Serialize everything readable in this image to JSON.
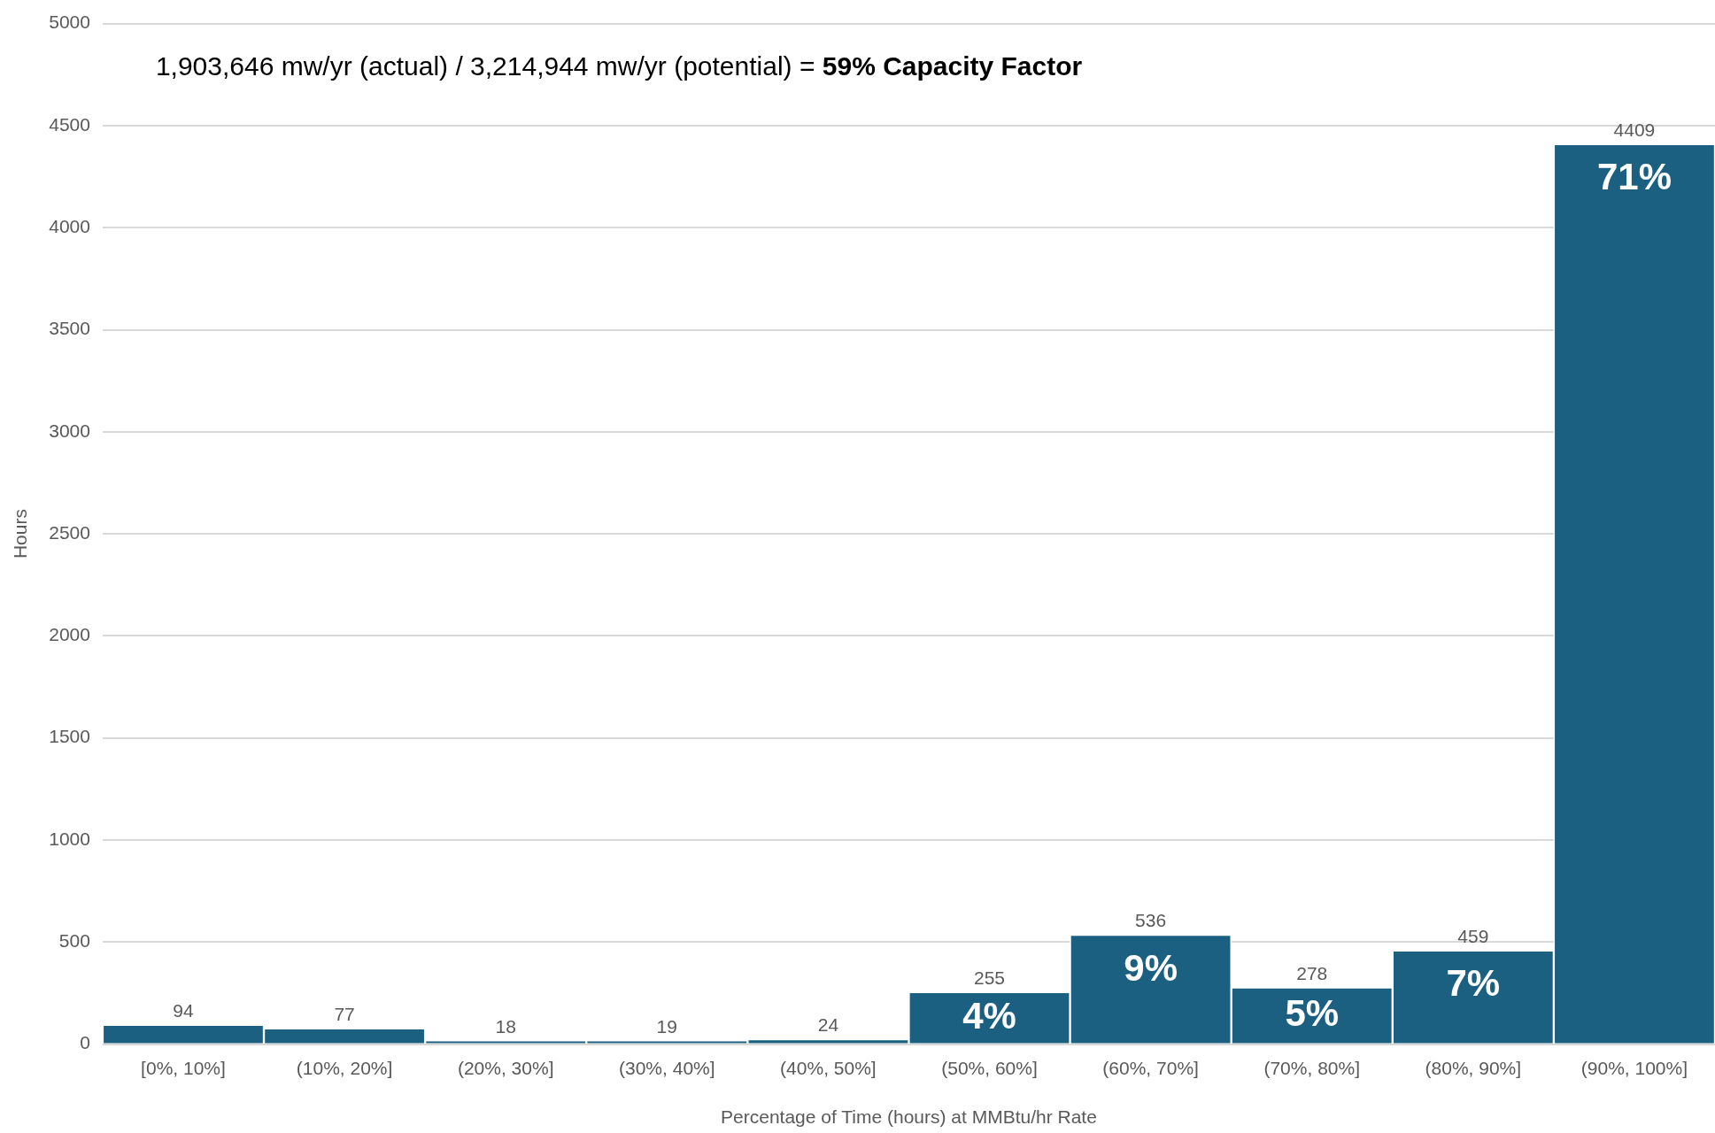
{
  "chart_data": {
    "type": "bar",
    "xlabel": "Percentage of Time (hours) at MMBtu/hr Rate",
    "ylabel": "Hours",
    "categories": [
      "[0%, 10%]",
      "(10%, 20%]",
      "(20%, 30%]",
      "(30%, 40%]",
      "(40%, 50%]",
      "(50%, 60%]",
      "(60%, 70%]",
      "(70%, 80%]",
      "(80%, 90%]",
      "(90%, 100%]"
    ],
    "values": [
      94,
      77,
      18,
      19,
      24,
      255,
      536,
      278,
      459,
      4409
    ],
    "color": "#1b6080",
    "ylim": [
      0,
      5000
    ],
    "yticks": [
      0,
      500,
      1000,
      1500,
      2000,
      2500,
      3000,
      3500,
      4000,
      4500,
      5000
    ],
    "grid": "y",
    "legend": false,
    "data_labels": true,
    "annotations": [
      "1,903,646 mw/yr (actual) / 3,214,944 mw/yr (potential) = ",
      "59% Capacity Factor",
      {
        "text": "4%",
        "x": "(50%, 60%]",
        "y": 255
      },
      {
        "text": "9%",
        "x": "(60%, 70%]",
        "y": 536
      },
      {
        "text": "5%",
        "x": "(70%, 80%]",
        "y": 278
      },
      {
        "text": "7%",
        "x": "(80%, 90%]",
        "y": 459
      },
      {
        "text": "71%",
        "x": "(90%, 100%]",
        "y": 4409
      }
    ]
  }
}
